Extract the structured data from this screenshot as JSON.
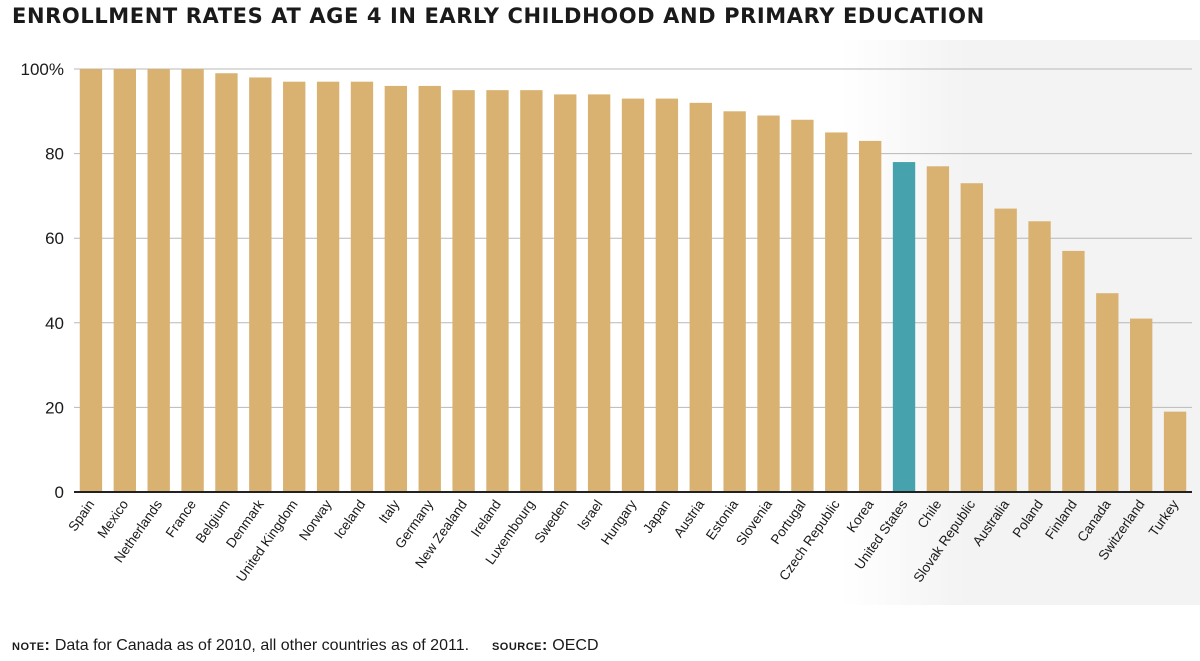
{
  "chart_data": {
    "type": "bar",
    "title": "ENROLLMENT RATES AT AGE 4 IN EARLY CHILDHOOD AND PRIMARY EDUCATION",
    "xlabel": "",
    "ylabel": "",
    "ylim": [
      0,
      100
    ],
    "y_ticks": [
      0,
      20,
      40,
      60,
      80,
      100
    ],
    "y_tick_labels": [
      "0",
      "20",
      "40",
      "60",
      "80",
      "100%"
    ],
    "grid": true,
    "categories": [
      "Spain",
      "Mexico",
      "Netherlands",
      "France",
      "Belgium",
      "Denmark",
      "United Kingdom",
      "Norway",
      "Iceland",
      "Italy",
      "Germany",
      "New Zealand",
      "Ireland",
      "Luxembourg",
      "Sweden",
      "Israel",
      "Hungary",
      "Japan",
      "Austria",
      "Estonia",
      "Slovenia",
      "Portugal",
      "Czech Republic",
      "Korea",
      "United States",
      "Chile",
      "Slovak Republic",
      "Australia",
      "Poland",
      "Finland",
      "Canada",
      "Switzerland",
      "Turkey"
    ],
    "values": [
      100,
      100,
      100,
      100,
      99,
      98,
      97,
      97,
      97,
      96,
      96,
      95,
      95,
      95,
      94,
      94,
      93,
      93,
      92,
      90,
      89,
      88,
      85,
      83,
      78,
      77,
      73,
      67,
      64,
      57,
      47,
      41,
      19
    ],
    "highlight": "United States",
    "colors": {
      "bar": "#d9b272",
      "highlight": "#46a2ad",
      "grid": "#b8b8b8",
      "axis": "#222222",
      "shade": "#f3f3f4"
    }
  },
  "footnote": {
    "note_label": "NOTE:",
    "note_text": "Data for Canada as of 2010, all other countries as of 2011.",
    "source_label": "SOURCE:",
    "source_text": "OECD"
  }
}
